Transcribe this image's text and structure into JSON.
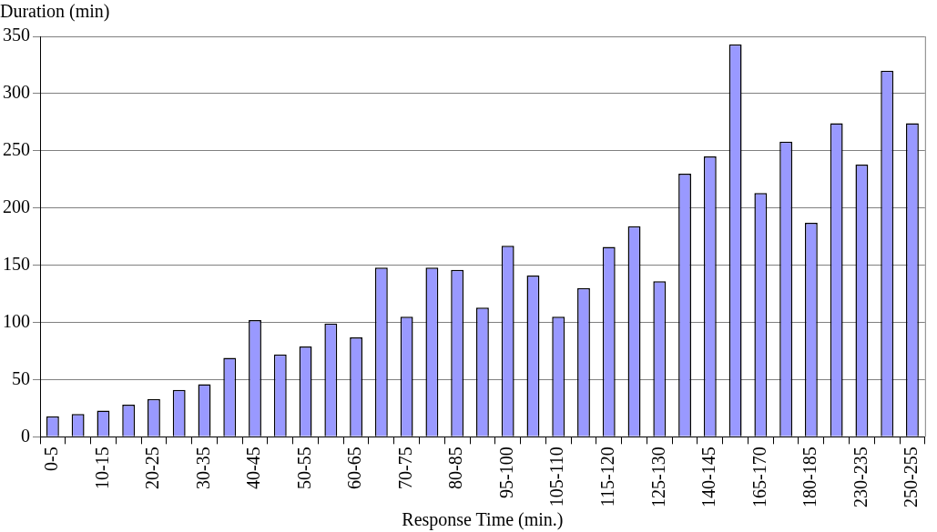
{
  "chart_data": {
    "type": "bar",
    "xlabel": "Response Time (min.)",
    "ylabel": "Duration (min)",
    "categories": [
      "0-5",
      null,
      "10-15",
      null,
      "20-25",
      null,
      "30-35",
      null,
      "40-45",
      null,
      "50-55",
      null,
      "60-65",
      null,
      "70-75",
      null,
      "80-85",
      null,
      "95-100",
      null,
      "105-110",
      null,
      "115-120",
      null,
      "125-130",
      null,
      "140-145",
      null,
      "165-170",
      null,
      "180-185",
      null,
      "230-235",
      null,
      "250-255"
    ],
    "values": [
      18,
      20,
      23,
      28,
      33,
      41,
      46,
      69,
      102,
      72,
      79,
      99,
      87,
      148,
      105,
      148,
      146,
      113,
      167,
      141,
      105,
      130,
      166,
      184,
      136,
      230,
      245,
      343,
      213,
      258,
      187,
      274,
      238,
      320,
      274
    ],
    "color": "#9999ff",
    "ylim": [
      0,
      350
    ],
    "yticks": [
      0,
      50,
      100,
      150,
      200,
      250,
      300,
      350
    ],
    "grid": "y",
    "legend": false
  }
}
